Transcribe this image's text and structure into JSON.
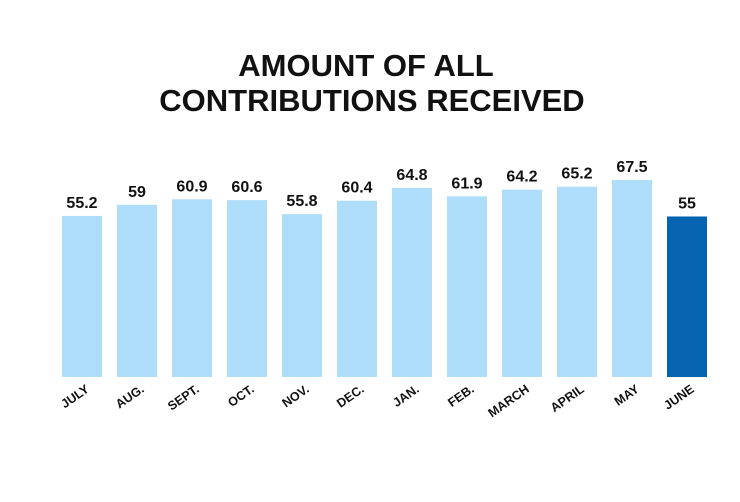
{
  "chart_data": {
    "type": "bar",
    "title": [
      "AMOUNT OF ALL",
      "CONTRIBUTIONS RECEIVED"
    ],
    "categories": [
      "JULY",
      "AUG.",
      "SEPT.",
      "OCT.",
      "NOV.",
      "DEC.",
      "JAN.",
      "FEB.",
      "MARCH",
      "APRIL",
      "MAY",
      "JUNE"
    ],
    "values": [
      55.2,
      59,
      60.9,
      60.6,
      55.8,
      60.4,
      64.8,
      61.9,
      64.2,
      65.2,
      67.5,
      55
    ],
    "colors": [
      "#aedefa",
      "#aedefa",
      "#aedefa",
      "#aedefa",
      "#aedefa",
      "#aedefa",
      "#aedefa",
      "#aedefa",
      "#aedefa",
      "#aedefa",
      "#aedefa",
      "#0563b0"
    ]
  }
}
